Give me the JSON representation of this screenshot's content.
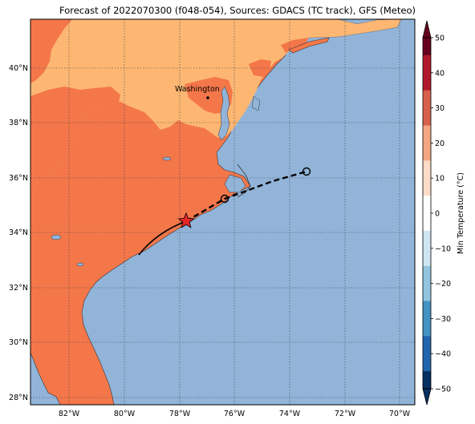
{
  "title": "Forecast of 2022070300 (f048-054), Sources: GDACS (TC track), GFS (Meteo)",
  "city_label": "Washington",
  "lon_labels": [
    "82°W",
    "80°W",
    "78°W",
    "76°W",
    "74°W",
    "72°W",
    "70°W"
  ],
  "lat_labels": [
    "40°N",
    "38°N",
    "36°N",
    "34°N",
    "32°N",
    "30°N",
    "28°N"
  ],
  "colorbar": {
    "label": "Min Temperature (°C)",
    "ticks": [
      "50",
      "40",
      "30",
      "20",
      "10",
      "0",
      "−10",
      "−20",
      "−30",
      "−40",
      "−50"
    ],
    "colors": [
      "#67001f",
      "#b2182b",
      "#d6604d",
      "#f4a582",
      "#fddbc7",
      "#ffffff",
      "#d1e5f0",
      "#92c5de",
      "#4393c3",
      "#2166ac",
      "#053061"
    ]
  },
  "colors": {
    "ocean": "#92b4d9",
    "land_warm": "#f4774a",
    "land_mild": "#fdb773",
    "track": "#000000",
    "storm_marker": "#e32626"
  }
}
